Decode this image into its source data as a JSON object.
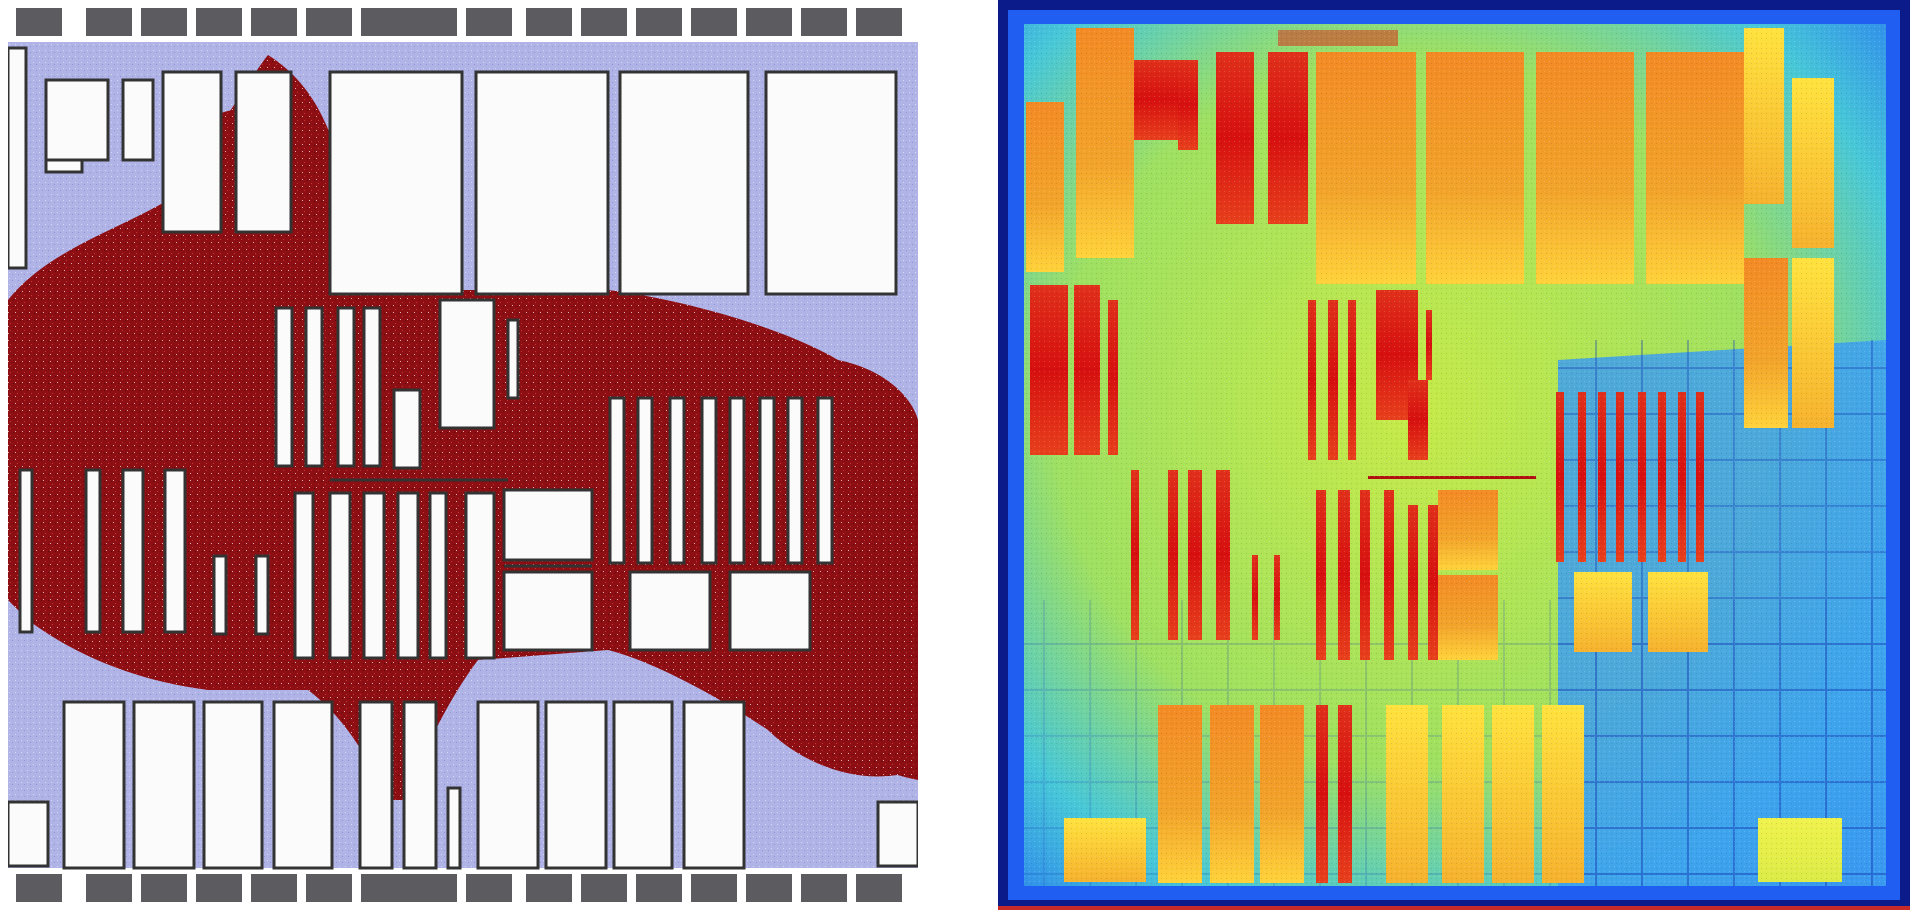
{
  "figure": {
    "left_panel": {
      "kind": "chip layout map with coverage overlay",
      "colors": {
        "background": "#b0b3e6",
        "coverage": "#8e0f13",
        "block_fill": "#fbfbfb",
        "block_border": "#333333",
        "pad_ring": "#5b5b60",
        "pad_gap": "#ffffff"
      }
    },
    "right_panel": {
      "kind": "chip heat map",
      "colors": {
        "frame": "#0b1c8a",
        "edge": "#1f5ef0",
        "base": "#bfe84a",
        "mid": "#5fd7d0",
        "hot_low": "#ffd73a",
        "hot_high": "#d70f10",
        "cool_region": "#3b9cf0"
      }
    }
  }
}
